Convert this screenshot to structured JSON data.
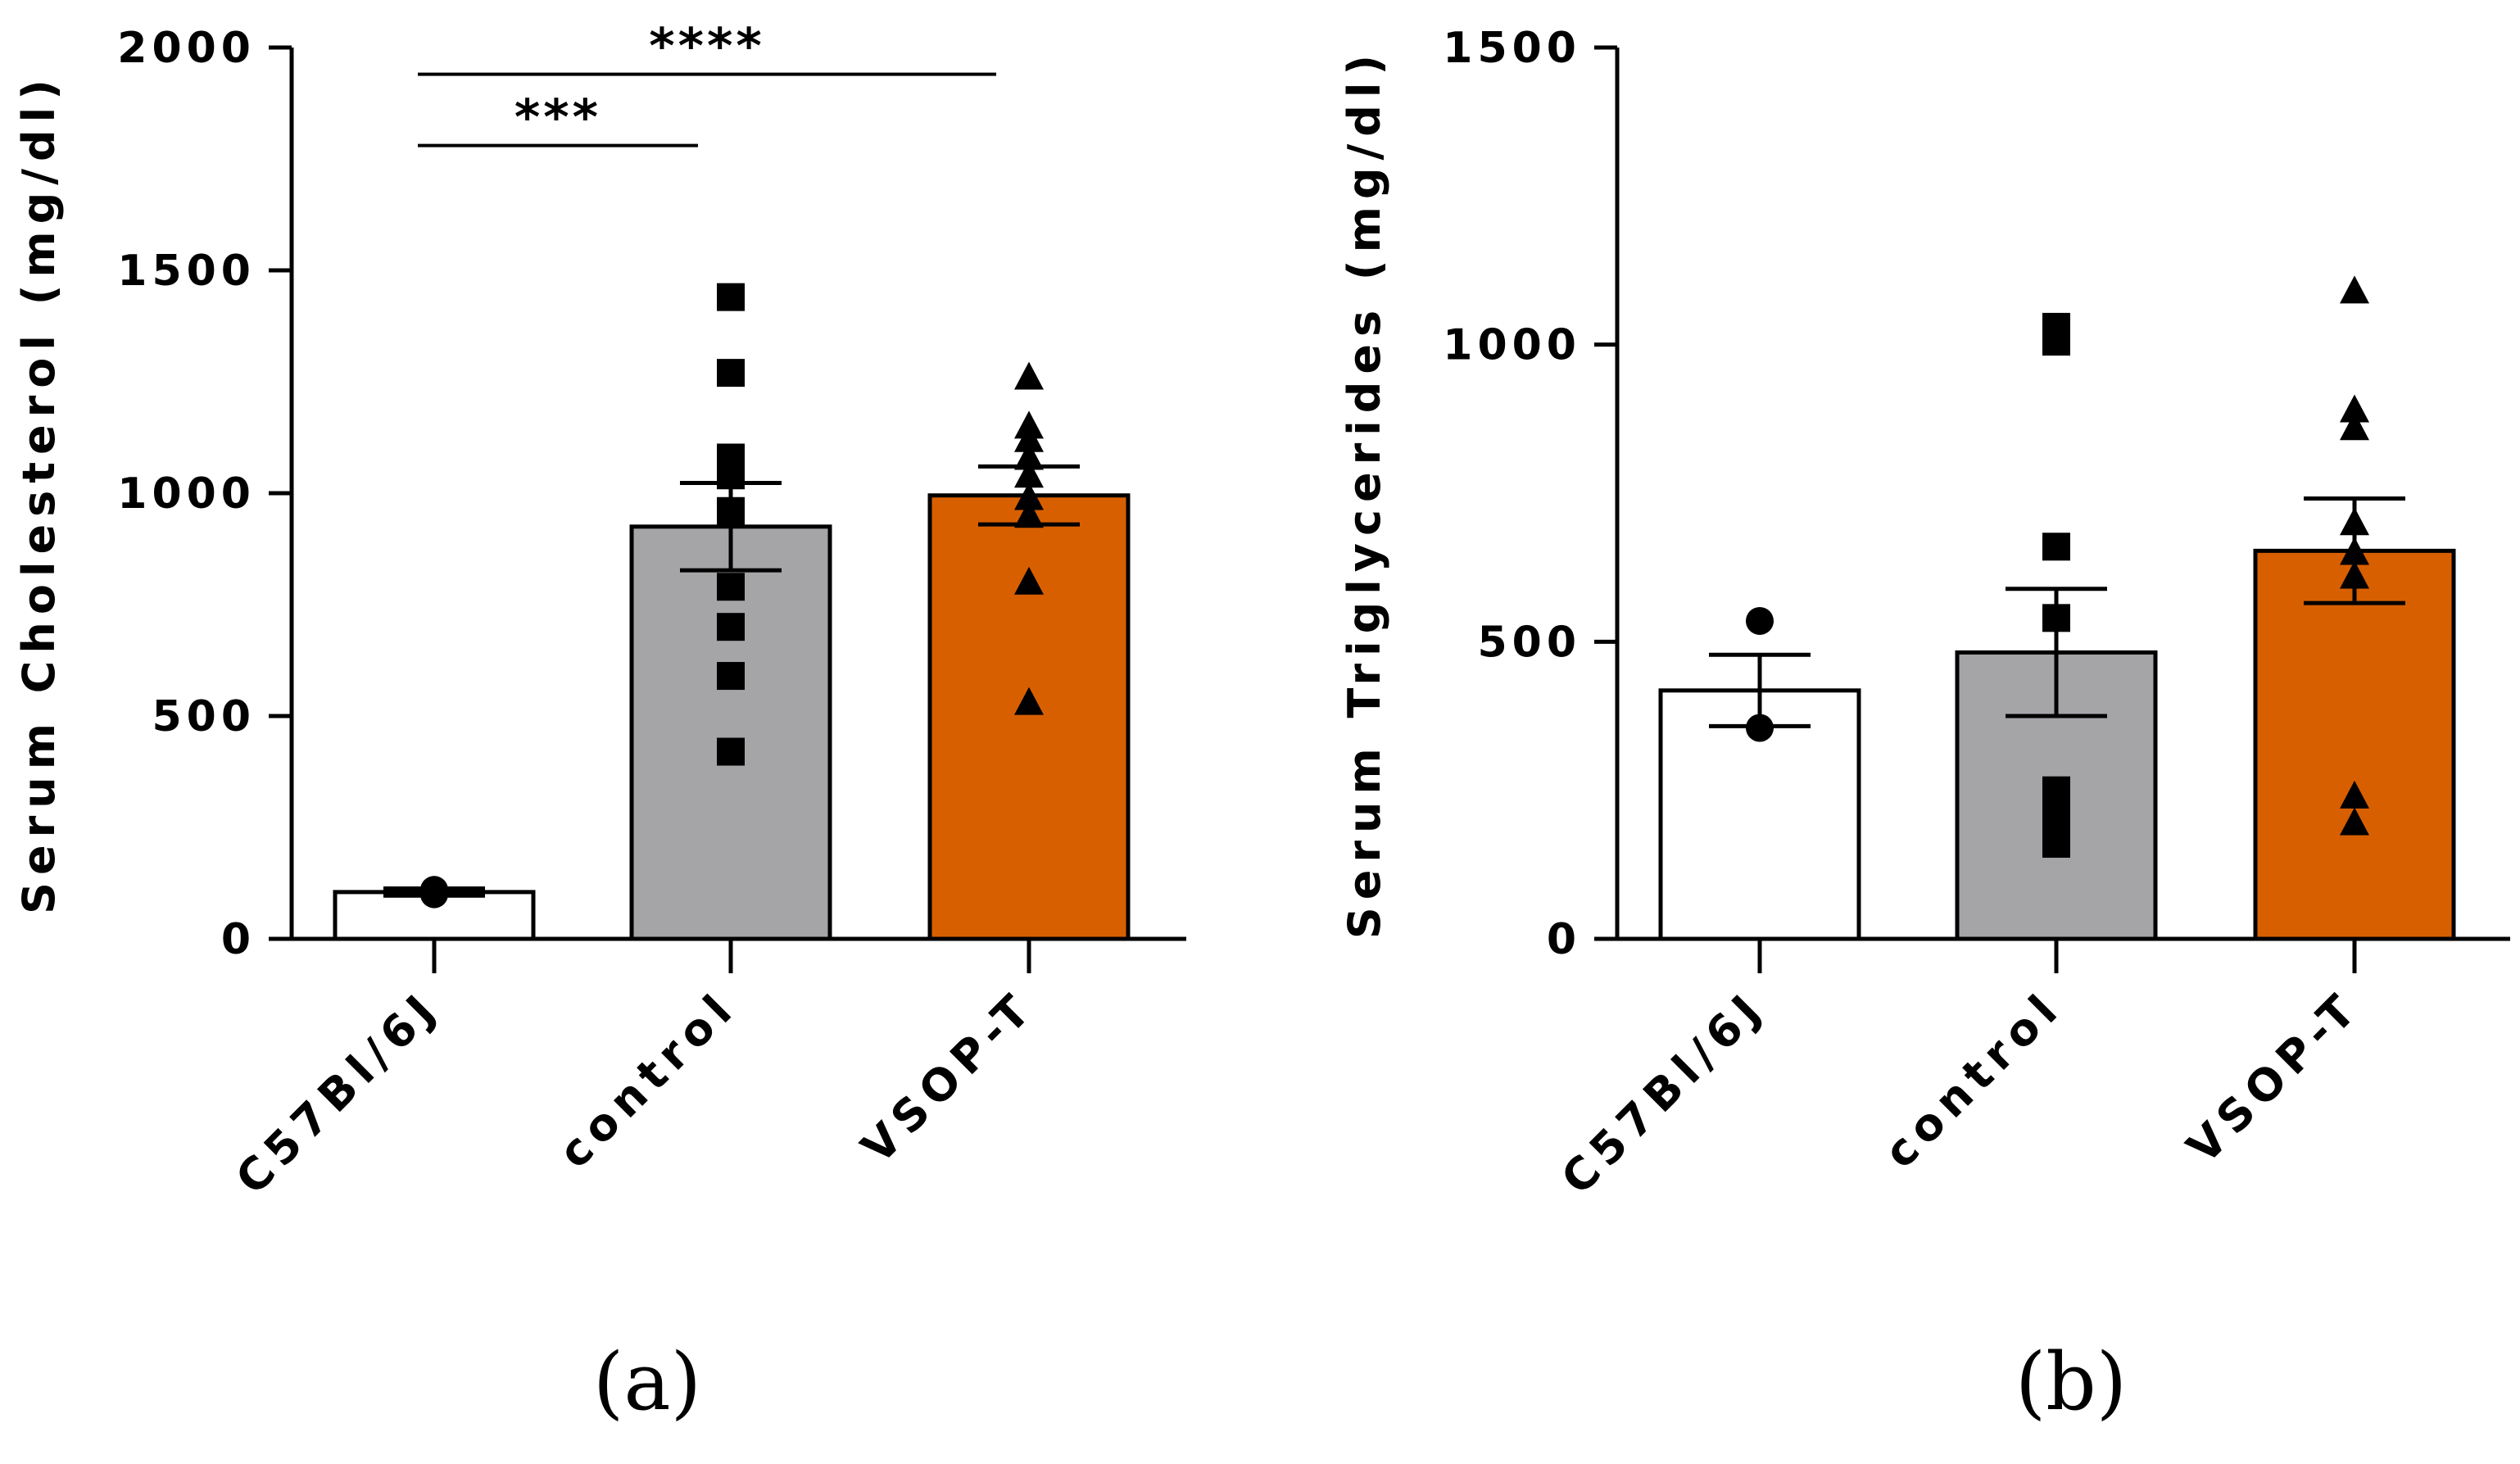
{
  "chart_data": [
    {
      "type": "bar",
      "panel_label": "(a)",
      "ylabel": "Serum Cholesterol (mg/dl)",
      "ylim": [
        0,
        2000
      ],
      "yticks": [
        0,
        500,
        1000,
        1500,
        2000
      ],
      "categories": [
        "C57Bl/6J",
        "control",
        "VSOP-T"
      ],
      "values": [
        105,
        925,
        995
      ],
      "sem": [
        8,
        98,
        65
      ],
      "colors": [
        "#ffffff",
        "#a5a5a8",
        "#d85f00"
      ],
      "markers": [
        "circle",
        "square",
        "triangle"
      ],
      "points": [
        [
          110,
          100
        ],
        [
          1440,
          1270,
          1080,
          1040,
          960,
          790,
          700,
          590,
          420
        ],
        [
          1260,
          1150,
          1120,
          1080,
          1040,
          990,
          950,
          800,
          530
        ]
      ],
      "significance": [
        {
          "from": 0,
          "to": 1,
          "label": "***",
          "y": 1780
        },
        {
          "from": 0,
          "to": 2,
          "label": "****",
          "y": 1940
        }
      ]
    },
    {
      "type": "bar",
      "panel_label": "(b)",
      "ylabel": "Serum Triglycerides (mg/dl)",
      "ylim": [
        0,
        1500
      ],
      "yticks": [
        0,
        500,
        1000,
        1500
      ],
      "categories": [
        "C57Bl/6J",
        "control",
        "VSOP-T"
      ],
      "values": [
        418,
        482,
        653
      ],
      "sem": [
        60,
        107,
        88
      ],
      "colors": [
        "#ffffff",
        "#a5a5a8",
        "#d85f00"
      ],
      "markers": [
        "circle",
        "square",
        "triangle"
      ],
      "points": [
        [
          535,
          355
        ],
        [
          1030,
          1005,
          660,
          540,
          250,
          215,
          185,
          160
        ],
        [
          1090,
          890,
          860,
          700,
          650,
          610,
          240,
          195
        ]
      ],
      "significance": []
    }
  ]
}
